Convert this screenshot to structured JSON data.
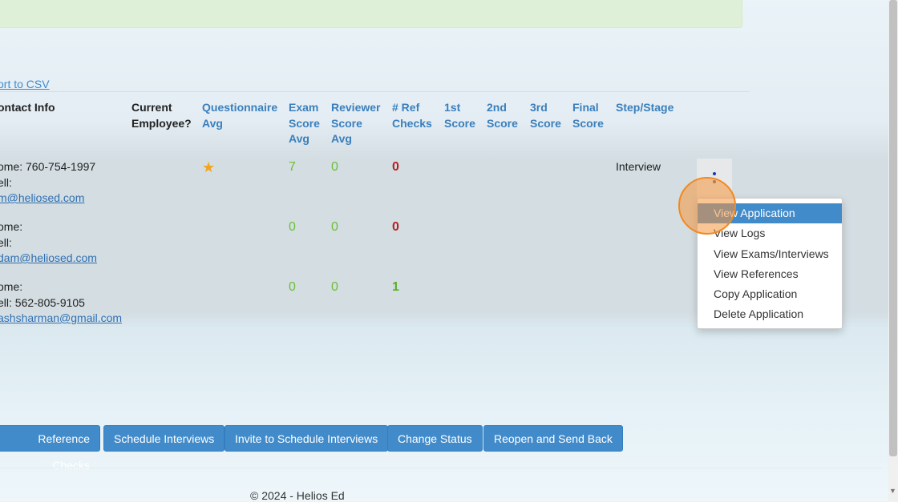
{
  "export_link": "ort to CSV",
  "headers": {
    "contact": "ontact Info",
    "current1": "Current",
    "current2": "Employee?",
    "q1": "Questionnaire",
    "q2": "Avg",
    "e1": "Exam",
    "e2": "Score",
    "e3": "Avg",
    "rv1": "Reviewer",
    "rv2": "Score",
    "rv3": "Avg",
    "rf1": "# Ref",
    "rf2": "Checks",
    "s1a": "1st",
    "s1b": "Score",
    "s2a": "2nd",
    "s2b": "Score",
    "s3a": "3rd",
    "s3b": "Score",
    "fa": "Final",
    "fb": "Score",
    "step": "Step/Stage"
  },
  "rows": [
    {
      "home": "ome: 760-754-1997",
      "cell": "ell:",
      "email": "m@heliosed.com",
      "questionnaire_icon": "star-icon",
      "exam": "7",
      "reviewer": "0",
      "refs": "0",
      "refs_color": "#b82020",
      "step": "Interview"
    },
    {
      "home": "ome:",
      "cell": "ell:",
      "email": "dam@heliosed.com",
      "exam": "0",
      "reviewer": "0",
      "refs": "0",
      "refs_color": "#b82020"
    },
    {
      "home": "ome:",
      "cell": "ell: 562-805-9105",
      "email": "ashsharman@gmail.com",
      "exam": "0",
      "reviewer": "0",
      "refs": "1",
      "refs_color": "#5cae2a"
    }
  ],
  "menu": [
    "View Application",
    "View Logs",
    "View Exams/Interviews",
    "View References",
    "Copy Application",
    "Delete Application"
  ],
  "buttons": [
    "Reference Checks",
    "Schedule Interviews",
    "Invite to Schedule Interviews",
    "Change Status",
    "Reopen and Send Back"
  ],
  "footer": "© 2024 - Helios Ed",
  "colors": {
    "accent": "#428bca",
    "alert_bg": "#dff0d8"
  }
}
